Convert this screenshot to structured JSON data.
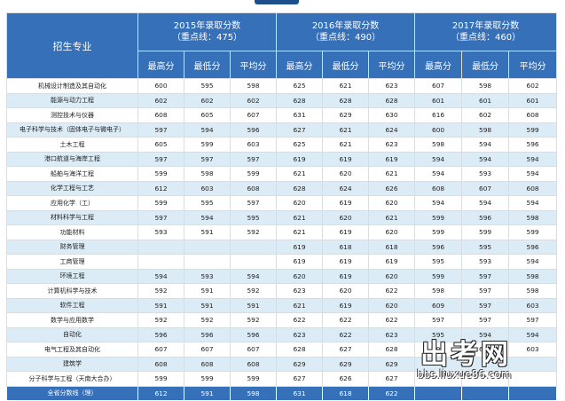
{
  "table": {
    "major_header": "招生专业",
    "years": [
      {
        "title": "2015年录取分数",
        "baseline": "（重点线：475）"
      },
      {
        "title": "2016年录取分数",
        "baseline": "（重点线：490）"
      },
      {
        "title": "2017年录取分数",
        "baseline": "（重点线：460）"
      }
    ],
    "subheaders": [
      "最高分",
      "最低分",
      "平均分"
    ],
    "rows": [
      {
        "major": "机械设计制造及其自动化",
        "scores": [
          "600",
          "595",
          "598",
          "625",
          "621",
          "623",
          "607",
          "598",
          "602"
        ]
      },
      {
        "major": "能源与动力工程",
        "scores": [
          "602",
          "602",
          "602",
          "628",
          "628",
          "628",
          "601",
          "601",
          "601"
        ]
      },
      {
        "major": "测控技术与仪器",
        "scores": [
          "608",
          "605",
          "607",
          "631",
          "629",
          "630",
          "616",
          "602",
          "608"
        ]
      },
      {
        "major": "电子科学与技术（固体电子与微电子）",
        "scores": [
          "597",
          "594",
          "596",
          "627",
          "621",
          "624",
          "600",
          "598",
          "599"
        ]
      },
      {
        "major": "土木工程",
        "scores": [
          "605",
          "599",
          "603",
          "625",
          "621",
          "623",
          "598",
          "594",
          "596"
        ]
      },
      {
        "major": "港口航道与海岸工程",
        "scores": [
          "597",
          "597",
          "597",
          "619",
          "619",
          "619",
          "594",
          "594",
          "594"
        ]
      },
      {
        "major": "船舶与海洋工程",
        "scores": [
          "599",
          "598",
          "599",
          "621",
          "620",
          "621",
          "594",
          "593",
          "594"
        ]
      },
      {
        "major": "化学工程与工艺",
        "scores": [
          "612",
          "603",
          "608",
          "628",
          "624",
          "626",
          "608",
          "607",
          "608"
        ]
      },
      {
        "major": "应用化学（工）",
        "scores": [
          "599",
          "595",
          "597",
          "620",
          "619",
          "620",
          "594",
          "594",
          "594"
        ]
      },
      {
        "major": "材料科学与工程",
        "scores": [
          "597",
          "594",
          "595",
          "621",
          "620",
          "621",
          "599",
          "596",
          "598"
        ]
      },
      {
        "major": "功能材料",
        "scores": [
          "593",
          "591",
          "592",
          "621",
          "619",
          "620",
          "599",
          "599",
          "599"
        ]
      },
      {
        "major": "财务管理",
        "scores": [
          "",
          "",
          "",
          "619",
          "618",
          "618",
          "596",
          "595",
          "596"
        ]
      },
      {
        "major": "工商管理",
        "scores": [
          "",
          "",
          "",
          "619",
          "619",
          "619",
          "595",
          "593",
          "594"
        ]
      },
      {
        "major": "环境工程",
        "scores": [
          "594",
          "593",
          "594",
          "620",
          "619",
          "620",
          "599",
          "597",
          "598"
        ]
      },
      {
        "major": "计算机科学与技术",
        "scores": [
          "592",
          "591",
          "592",
          "623",
          "620",
          "622",
          "598",
          "597",
          "598"
        ]
      },
      {
        "major": "软件工程",
        "scores": [
          "591",
          "591",
          "591",
          "621",
          "619",
          "620",
          "609",
          "597",
          "603"
        ]
      },
      {
        "major": "数学与应用数学",
        "scores": [
          "592",
          "592",
          "592",
          "622",
          "622",
          "622",
          "597",
          "597",
          "597"
        ]
      },
      {
        "major": "自动化",
        "scores": [
          "596",
          "596",
          "596",
          "623",
          "622",
          "623",
          "595",
          "594",
          "594"
        ]
      },
      {
        "major": "电气工程及其自动化",
        "scores": [
          "607",
          "607",
          "607",
          "628",
          "627",
          "628",
          "603",
          "603",
          "603"
        ]
      },
      {
        "major": "建筑学",
        "scores": [
          "608",
          "608",
          "608",
          "629",
          "629",
          "629",
          "",
          "",
          ""
        ]
      },
      {
        "major": "分子科学与工程（天南大合办）",
        "scores": [
          "599",
          "599",
          "599",
          "627",
          "626",
          "627",
          "",
          "",
          ""
        ]
      }
    ],
    "summary": {
      "major": "全省分数线（理）",
      "scores": [
        "612",
        "591",
        "598",
        "631",
        "618",
        "622",
        "",
        "",
        ""
      ]
    }
  },
  "watermark": {
    "title": "出考网",
    "url": "bbs.liuxue86.com"
  }
}
